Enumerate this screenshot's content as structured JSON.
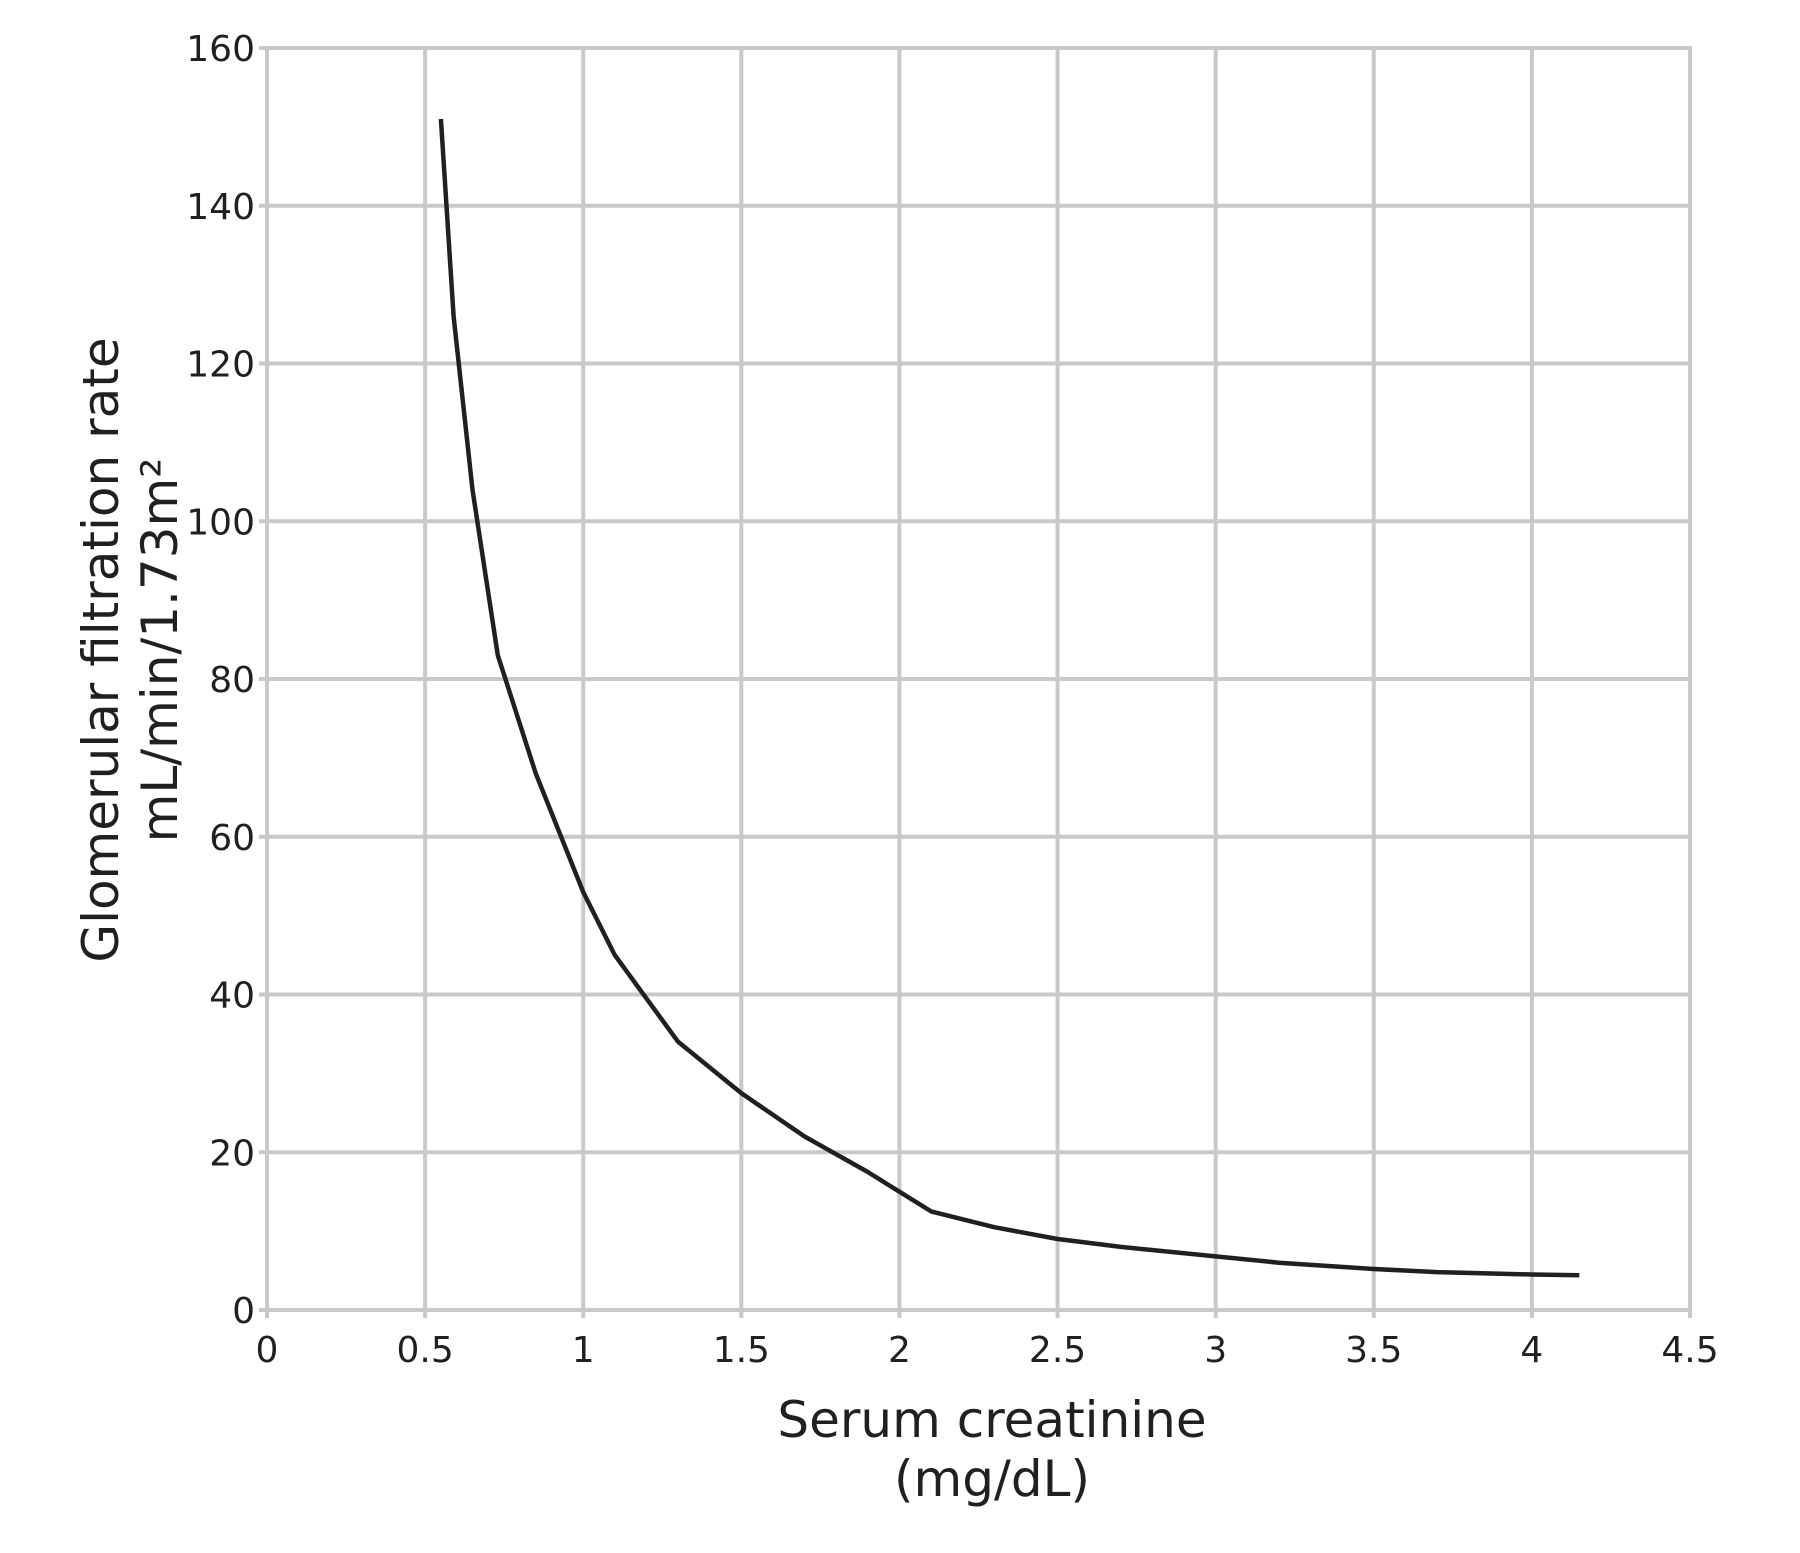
{
  "chart_data": {
    "type": "line",
    "title": "",
    "xlabel_lines": [
      "Serum creatinine",
      "(mg/dL)"
    ],
    "ylabel_lines": [
      "Glomerular filtration rate",
      "mL/min/1.73m²"
    ],
    "xlim": [
      0,
      4.5
    ],
    "ylim": [
      0,
      160
    ],
    "x_ticks": [
      0,
      0.5,
      1,
      1.5,
      2,
      2.5,
      3,
      3.5,
      4,
      4.5
    ],
    "x_tick_labels": [
      "0",
      "0.5",
      "1",
      "1.5",
      "2",
      "2.5",
      "3",
      "3.5",
      "4",
      "4.5"
    ],
    "y_ticks": [
      0,
      20,
      40,
      60,
      80,
      100,
      120,
      140,
      160
    ],
    "y_tick_labels": [
      "0",
      "20",
      "40",
      "60",
      "80",
      "100",
      "120",
      "140",
      "160"
    ],
    "grid": true,
    "legend": "none",
    "colors": {
      "grid": "#c8c9ca",
      "line": "#231f20",
      "text": "#231f20"
    },
    "series": [
      {
        "x": [
          0.55,
          0.59,
          0.65,
          0.73,
          0.85,
          1.0,
          1.1,
          1.3,
          1.5,
          1.7,
          1.9,
          2.0,
          2.1,
          2.3,
          2.5,
          2.7,
          3.0,
          3.2,
          3.5,
          3.7,
          4.0,
          4.15
        ],
        "y": [
          151,
          126,
          104,
          83,
          68,
          53,
          45,
          34,
          27.5,
          22,
          17.5,
          15,
          12.5,
          10.5,
          9,
          8,
          6.8,
          6,
          5.2,
          4.8,
          4.5,
          4.4
        ]
      }
    ]
  }
}
